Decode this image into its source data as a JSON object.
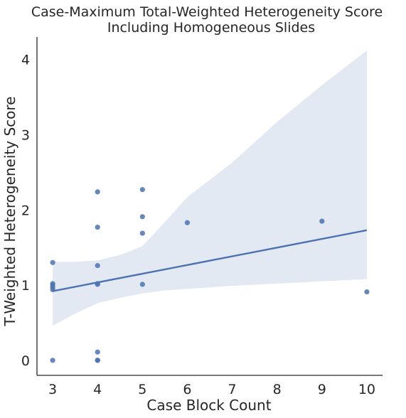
{
  "chart_data": {
    "type": "scatter",
    "title_lines": [
      "Case-Maximum Total-Weighted Heterogeneity Score",
      "Including Homogeneous Slides"
    ],
    "xlabel": "Case Block Count",
    "ylabel": "T-Weighted Heterogeneity Score",
    "xlim": [
      2.65,
      10.35
    ],
    "ylim": [
      -0.2,
      4.3
    ],
    "xticks": [
      "3",
      "4",
      "5",
      "6",
      "7",
      "8",
      "9",
      "10"
    ],
    "yticks": [
      "0",
      "1",
      "2",
      "3",
      "4"
    ],
    "grid": false,
    "points": [
      {
        "x": 3,
        "y": 0.0
      },
      {
        "x": 3,
        "y": 0.94
      },
      {
        "x": 3,
        "y": 0.97
      },
      {
        "x": 3,
        "y": 1.0
      },
      {
        "x": 3,
        "y": 1.02
      },
      {
        "x": 3,
        "y": 1.3
      },
      {
        "x": 4,
        "y": 0.0
      },
      {
        "x": 4,
        "y": 0.0
      },
      {
        "x": 4,
        "y": 0.11
      },
      {
        "x": 4,
        "y": 1.01
      },
      {
        "x": 4,
        "y": 1.02
      },
      {
        "x": 4,
        "y": 1.26
      },
      {
        "x": 4,
        "y": 1.77
      },
      {
        "x": 4,
        "y": 2.24
      },
      {
        "x": 5,
        "y": 1.01
      },
      {
        "x": 5,
        "y": 1.69
      },
      {
        "x": 5,
        "y": 1.91
      },
      {
        "x": 5,
        "y": 2.27
      },
      {
        "x": 6,
        "y": 1.83
      },
      {
        "x": 9,
        "y": 1.85
      },
      {
        "x": 10,
        "y": 0.91
      }
    ],
    "regression": {
      "x": [
        3,
        10
      ],
      "y": [
        0.92,
        1.73
      ]
    },
    "ci_band": {
      "x": [
        3,
        3.5,
        4,
        4.5,
        5,
        5.5,
        6,
        7,
        8,
        9,
        10
      ],
      "lower": [
        0.46,
        0.62,
        0.76,
        0.83,
        0.89,
        0.93,
        0.95,
        0.99,
        1.02,
        1.05,
        1.08
      ],
      "upper": [
        1.31,
        1.31,
        1.33,
        1.4,
        1.52,
        1.84,
        2.17,
        2.63,
        3.17,
        3.66,
        4.12
      ]
    },
    "colors": {
      "points": "#4c72b0",
      "line": "#4c72b0",
      "band": "#e3e9f3",
      "axis": "#262626",
      "text": "#262626"
    }
  }
}
